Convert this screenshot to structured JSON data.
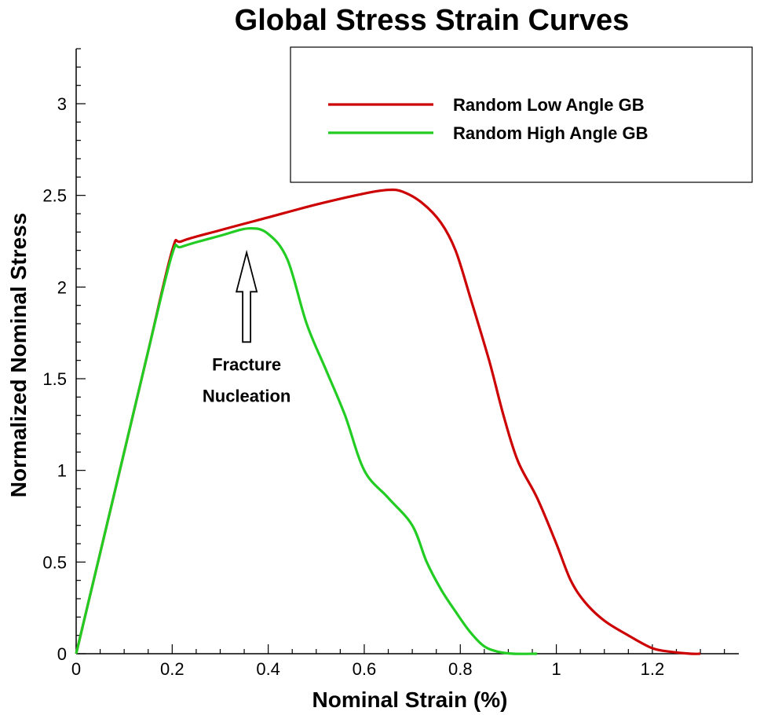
{
  "chart_data": {
    "type": "line",
    "title": "Global Stress Strain Curves",
    "xlabel": "Nominal Strain (%)",
    "ylabel": "Normalized Nominal Stress",
    "xlim": [
      0,
      1.38
    ],
    "ylim": [
      0,
      3.3
    ],
    "xticks": [
      0,
      0.2,
      0.4,
      0.6,
      0.8,
      1,
      1.2
    ],
    "xtick_labels": [
      "0",
      "0.2",
      "0.4",
      "0.6",
      "0.8",
      "1",
      "1.2"
    ],
    "yticks": [
      0,
      0.5,
      1,
      1.5,
      2,
      2.5,
      3
    ],
    "ytick_labels": [
      "0",
      "0.5",
      "1",
      "1.5",
      "2",
      "2.5",
      "3"
    ],
    "grid": false,
    "legend_position": "top-right",
    "series": [
      {
        "name": "Random Low Angle GB",
        "color": "#cc0000",
        "x": [
          0,
          0.05,
          0.1,
          0.15,
          0.2,
          0.22,
          0.3,
          0.4,
          0.5,
          0.6,
          0.65,
          0.68,
          0.72,
          0.76,
          0.79,
          0.82,
          0.86,
          0.89,
          0.92,
          0.96,
          1.0,
          1.03,
          1.06,
          1.1,
          1.15,
          1.2,
          1.24,
          1.28,
          1.3
        ],
        "y": [
          0,
          0.55,
          1.1,
          1.65,
          2.2,
          2.25,
          2.31,
          2.38,
          2.45,
          2.51,
          2.53,
          2.52,
          2.46,
          2.35,
          2.2,
          1.95,
          1.6,
          1.3,
          1.05,
          0.85,
          0.6,
          0.4,
          0.28,
          0.18,
          0.1,
          0.03,
          0.01,
          0.0,
          0.0
        ]
      },
      {
        "name": "Random High Angle GB",
        "color": "#22cc22",
        "x": [
          0,
          0.05,
          0.1,
          0.15,
          0.2,
          0.22,
          0.3,
          0.36,
          0.4,
          0.44,
          0.48,
          0.52,
          0.56,
          0.6,
          0.65,
          0.7,
          0.73,
          0.76,
          0.79,
          0.82,
          0.85,
          0.88,
          0.91,
          0.96
        ],
        "y": [
          0,
          0.55,
          1.1,
          1.65,
          2.18,
          2.22,
          2.28,
          2.32,
          2.29,
          2.15,
          1.8,
          1.55,
          1.3,
          1.0,
          0.85,
          0.7,
          0.5,
          0.35,
          0.23,
          0.12,
          0.04,
          0.01,
          0.0,
          0.0
        ]
      }
    ],
    "annotations": [
      {
        "text_lines": [
          "Fracture",
          "Nucleation"
        ],
        "arrow_x": 0.355,
        "arrow_tip_y": 2.18,
        "arrow_base_y": 1.7
      }
    ]
  }
}
